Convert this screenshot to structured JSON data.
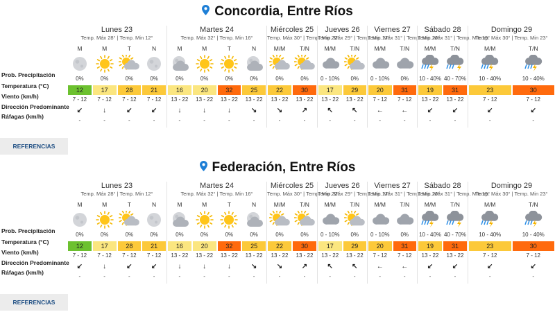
{
  "row_labels": {
    "precip": "Prob. Precipitación",
    "temp": "Temperatura (°C)",
    "wind": "Viento (km/h)",
    "dir": "Dirección Predominante",
    "gust": "Ráfagas (km/h)"
  },
  "references_label": "REFERENCIAS",
  "colors": {
    "green": "#6cc12f",
    "light_yellow": "#fbe680",
    "yellow": "#fcc93a",
    "orange": "#ff6a0d",
    "button_bg": "#ececec",
    "button_text": "#1f4f84"
  },
  "locations": [
    {
      "title": "Concordia, Entre Ríos",
      "days": [
        {
          "name": "Lunes 23",
          "temps": "Temp. Máx 28° | Temp. Min 12°",
          "periods": [
            {
              "label": "M",
              "icon": "moon-icon",
              "precip": "0%",
              "temp": "12",
              "color": "#6cc12f",
              "wind": "7 - 12",
              "dir": "↙",
              "gust": "-"
            },
            {
              "label": "M",
              "icon": "sun-icon",
              "precip": "0%",
              "temp": "17",
              "color": "#fbe680",
              "wind": "7 - 12",
              "dir": "↓",
              "gust": "-"
            },
            {
              "label": "T",
              "icon": "sun-cloud-icon",
              "precip": "0%",
              "temp": "28",
              "color": "#fcc93a",
              "wind": "7 - 12",
              "dir": "↙",
              "gust": "-"
            },
            {
              "label": "N",
              "icon": "moon-icon",
              "precip": "0%",
              "temp": "21",
              "color": "#fcc93a",
              "wind": "7 - 12",
              "dir": "↙",
              "gust": "-"
            }
          ]
        },
        {
          "name": "Martes 24",
          "temps": "Temp. Máx 32° | Temp. Min 16°",
          "periods": [
            {
              "label": "M",
              "icon": "moon-cloud-icon",
              "precip": "0%",
              "temp": "16",
              "color": "#fbe680",
              "wind": "13 - 22",
              "dir": "↓",
              "gust": "-"
            },
            {
              "label": "M",
              "icon": "sun-icon",
              "precip": "0%",
              "temp": "20",
              "color": "#fbe680",
              "wind": "13 - 22",
              "dir": "↓",
              "gust": "-"
            },
            {
              "label": "T",
              "icon": "sun-icon",
              "precip": "0%",
              "temp": "32",
              "color": "#ff6a0d",
              "wind": "13 - 22",
              "dir": "↓",
              "gust": "-"
            },
            {
              "label": "N",
              "icon": "moon-cloud-icon",
              "precip": "0%",
              "temp": "25",
              "color": "#fcc93a",
              "wind": "13 - 22",
              "dir": "↘",
              "gust": "-"
            }
          ]
        },
        {
          "name": "Miércoles 25",
          "temps": "Temp. Máx 30° | Temp. Min 22°",
          "periods": [
            {
              "label": "M/M",
              "icon": "sun-cloud-icon",
              "precip": "0%",
              "temp": "22",
              "color": "#fcc93a",
              "wind": "13 - 22",
              "dir": "↘",
              "gust": "-"
            },
            {
              "label": "T/N",
              "icon": "sun-cloud-icon",
              "precip": "0%",
              "temp": "30",
              "color": "#ff6a0d",
              "wind": "13 - 22",
              "dir": "↗",
              "gust": "-"
            }
          ]
        },
        {
          "name": "Jueves 26",
          "temps": "Temp. Máx 29° | Temp. Min 17°",
          "periods": [
            {
              "label": "M/M",
              "icon": "cloud-icon",
              "precip": "0 - 10%",
              "temp": "17",
              "color": "#fbe680",
              "wind": "13 - 22",
              "dir": "↖",
              "gust": "-"
            },
            {
              "label": "T/N",
              "icon": "sun-cloud-icon",
              "precip": "0%",
              "temp": "29",
              "color": "#fcc93a",
              "wind": "13 - 22",
              "dir": "↖",
              "gust": "-"
            }
          ]
        },
        {
          "name": "Viernes 27",
          "temps": "Temp. Máx 31° | Temp. Min 20°",
          "periods": [
            {
              "label": "M/M",
              "icon": "cloud-icon",
              "precip": "0 - 10%",
              "temp": "20",
              "color": "#fcc93a",
              "wind": "7 - 12",
              "dir": "←",
              "gust": "-"
            },
            {
              "label": "T/N",
              "icon": "cloud-icon",
              "precip": "0%",
              "temp": "31",
              "color": "#ff6a0d",
              "wind": "7 - 12",
              "dir": "←",
              "gust": "-"
            }
          ]
        },
        {
          "name": "Sábado 28",
          "temps": "Temp. Máx 31° | Temp. Min 19°",
          "periods": [
            {
              "label": "M/M",
              "icon": "storm-icon",
              "precip": "10 - 40%",
              "temp": "19",
              "color": "#fcc93a",
              "wind": "13 - 22",
              "dir": "↙",
              "gust": "-"
            },
            {
              "label": "T/N",
              "icon": "storm-rain-icon",
              "precip": "40 - 70%",
              "temp": "31",
              "color": "#ff6a0d",
              "wind": "13 - 22",
              "dir": "↙",
              "gust": "-"
            }
          ]
        },
        {
          "name": "Domingo 29",
          "temps": "Temp. Máx 30° | Temp. Min 23°",
          "periods": [
            {
              "label": "M/M",
              "icon": "storm-icon",
              "precip": "10 - 40%",
              "temp": "23",
              "color": "#fcc93a",
              "wind": "7 - 12",
              "dir": "↙",
              "gust": "-"
            },
            {
              "label": "T/N",
              "icon": "storm-icon",
              "precip": "10 - 40%",
              "temp": "30",
              "color": "#ff6a0d",
              "wind": "7 - 12",
              "dir": "↙",
              "gust": "-"
            }
          ]
        }
      ]
    },
    {
      "title": "Federación, Entre Ríos",
      "days": [
        {
          "name": "Lunes 23",
          "temps": "Temp. Máx 28° | Temp. Min 12°",
          "periods": [
            {
              "label": "M",
              "icon": "moon-icon",
              "precip": "0%",
              "temp": "12",
              "color": "#6cc12f",
              "wind": "7 - 12",
              "dir": "↙",
              "gust": "-"
            },
            {
              "label": "M",
              "icon": "sun-icon",
              "precip": "0%",
              "temp": "17",
              "color": "#fbe680",
              "wind": "7 - 12",
              "dir": "↓",
              "gust": "-"
            },
            {
              "label": "T",
              "icon": "sun-cloud-icon",
              "precip": "0%",
              "temp": "28",
              "color": "#fcc93a",
              "wind": "7 - 12",
              "dir": "↙",
              "gust": "-"
            },
            {
              "label": "N",
              "icon": "moon-icon",
              "precip": "0%",
              "temp": "21",
              "color": "#fcc93a",
              "wind": "7 - 12",
              "dir": "↙",
              "gust": "-"
            }
          ]
        },
        {
          "name": "Martes 24",
          "temps": "Temp. Máx 32° | Temp. Min 16°",
          "periods": [
            {
              "label": "M",
              "icon": "moon-cloud-icon",
              "precip": "0%",
              "temp": "16",
              "color": "#fbe680",
              "wind": "13 - 22",
              "dir": "↓",
              "gust": "-"
            },
            {
              "label": "M",
              "icon": "sun-icon",
              "precip": "0%",
              "temp": "20",
              "color": "#fbe680",
              "wind": "13 - 22",
              "dir": "↓",
              "gust": "-"
            },
            {
              "label": "T",
              "icon": "sun-icon",
              "precip": "0%",
              "temp": "32",
              "color": "#ff6a0d",
              "wind": "13 - 22",
              "dir": "↓",
              "gust": "-"
            },
            {
              "label": "N",
              "icon": "moon-cloud-icon",
              "precip": "0%",
              "temp": "25",
              "color": "#fcc93a",
              "wind": "13 - 22",
              "dir": "↘",
              "gust": "-"
            }
          ]
        },
        {
          "name": "Miércoles 25",
          "temps": "Temp. Máx 30° | Temp. Min 22°",
          "periods": [
            {
              "label": "M/M",
              "icon": "sun-cloud-icon",
              "precip": "0%",
              "temp": "22",
              "color": "#fcc93a",
              "wind": "13 - 22",
              "dir": "↘",
              "gust": "-"
            },
            {
              "label": "T/N",
              "icon": "sun-cloud-icon",
              "precip": "0%",
              "temp": "30",
              "color": "#ff6a0d",
              "wind": "13 - 22",
              "dir": "↗",
              "gust": "-"
            }
          ]
        },
        {
          "name": "Jueves 26",
          "temps": "Temp. Máx 29° | Temp. Min 17°",
          "periods": [
            {
              "label": "M/M",
              "icon": "cloud-icon",
              "precip": "0 - 10%",
              "temp": "17",
              "color": "#fbe680",
              "wind": "13 - 22",
              "dir": "↖",
              "gust": "-"
            },
            {
              "label": "T/N",
              "icon": "sun-cloud-icon",
              "precip": "0%",
              "temp": "29",
              "color": "#fcc93a",
              "wind": "13 - 22",
              "dir": "↖",
              "gust": "-"
            }
          ]
        },
        {
          "name": "Viernes 27",
          "temps": "Temp. Máx 31° | Temp. Min 20°",
          "periods": [
            {
              "label": "M/M",
              "icon": "cloud-icon",
              "precip": "0 - 10%",
              "temp": "20",
              "color": "#fcc93a",
              "wind": "7 - 12",
              "dir": "←",
              "gust": "-"
            },
            {
              "label": "T/N",
              "icon": "cloud-icon",
              "precip": "0%",
              "temp": "31",
              "color": "#ff6a0d",
              "wind": "7 - 12",
              "dir": "←",
              "gust": "-"
            }
          ]
        },
        {
          "name": "Sábado 28",
          "temps": "Temp. Máx 31° | Temp. Min 19°",
          "periods": [
            {
              "label": "M/M",
              "icon": "storm-icon",
              "precip": "10 - 40%",
              "temp": "19",
              "color": "#fcc93a",
              "wind": "13 - 22",
              "dir": "↙",
              "gust": "-"
            },
            {
              "label": "T/N",
              "icon": "storm-rain-icon",
              "precip": "40 - 70%",
              "temp": "31",
              "color": "#ff6a0d",
              "wind": "13 - 22",
              "dir": "↙",
              "gust": "-"
            }
          ]
        },
        {
          "name": "Domingo 29",
          "temps": "Temp. Máx 30° | Temp. Min 23°",
          "periods": [
            {
              "label": "M/M",
              "icon": "storm-icon",
              "precip": "10 - 40%",
              "temp": "23",
              "color": "#fcc93a",
              "wind": "7 - 12",
              "dir": "↙",
              "gust": "-"
            },
            {
              "label": "T/N",
              "icon": "storm-icon",
              "precip": "10 - 40%",
              "temp": "30",
              "color": "#ff6a0d",
              "wind": "7 - 12",
              "dir": "↙",
              "gust": "-"
            }
          ]
        }
      ]
    }
  ]
}
